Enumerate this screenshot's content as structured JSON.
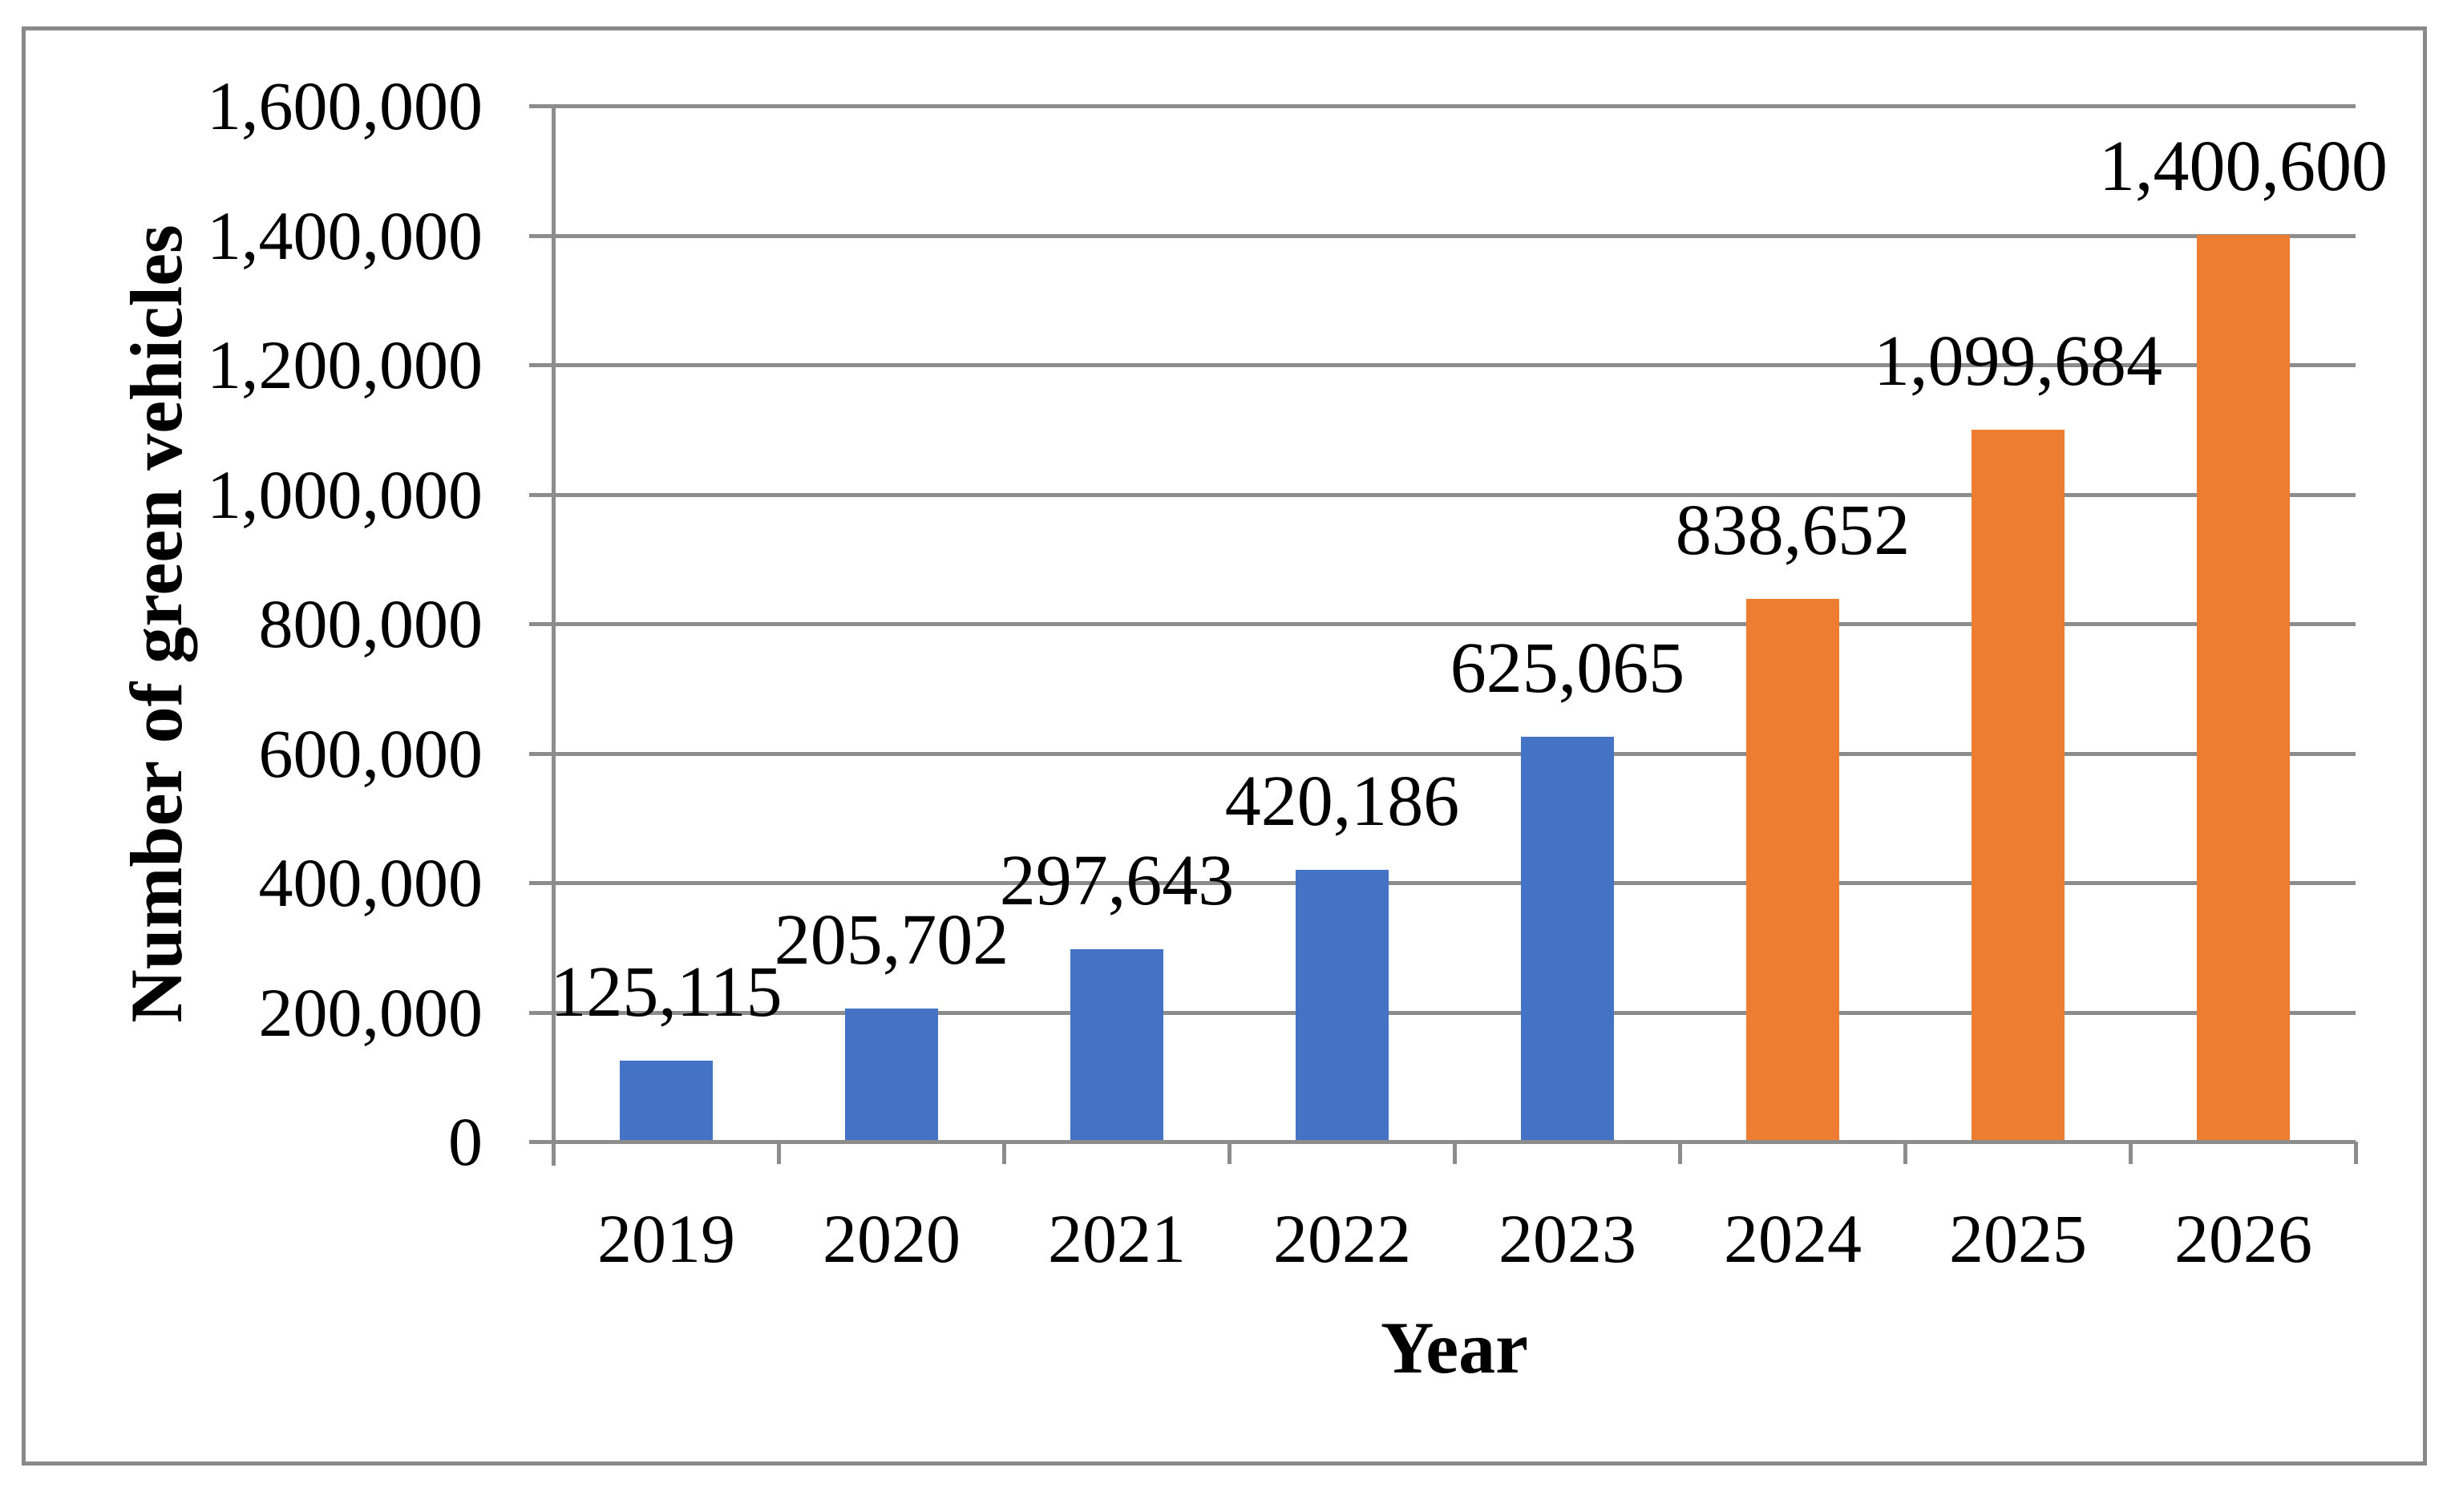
{
  "figure": {
    "background": "#FFFFFF",
    "border_color": "#898989"
  },
  "chart_data": {
    "type": "bar",
    "title": "",
    "xlabel": "Year",
    "ylabel": "Number of green vehicles",
    "categories": [
      "2019",
      "2020",
      "2021",
      "2022",
      "2023",
      "2024",
      "2025",
      "2026"
    ],
    "values": [
      125115,
      205702,
      297643,
      420186,
      625065,
      838652,
      1099684,
      1400600
    ],
    "data_labels": [
      "125,115",
      "205,702",
      "297,643",
      "420,186",
      "625,065",
      "838,652",
      "1,099,684",
      "1,400,600"
    ],
    "bar_colors": [
      "#4472C4",
      "#4472C4",
      "#4472C4",
      "#4472C4",
      "#4472C4",
      "#ED7D31",
      "#ED7D31",
      "#ED7D31"
    ],
    "colors": {
      "blue_bar": "#4472C4",
      "orange_bar": "#ED7D31",
      "grid": "#8C8C8C",
      "axis": "#8C8C8C",
      "text": "#000000"
    },
    "ylim": [
      0,
      1600000
    ],
    "ytick_step": 200000,
    "yticks": [
      {
        "value": 0,
        "label": "0"
      },
      {
        "value": 200000,
        "label": "200,000"
      },
      {
        "value": 400000,
        "label": "400,000"
      },
      {
        "value": 600000,
        "label": "600,000"
      },
      {
        "value": 800000,
        "label": "800,000"
      },
      {
        "value": 1000000,
        "label": "1,000,000"
      },
      {
        "value": 1200000,
        "label": "1,200,000"
      },
      {
        "value": 1400000,
        "label": "1,400,000"
      },
      {
        "value": 1600000,
        "label": "1,600,000"
      }
    ],
    "grid": true,
    "legend": "none"
  }
}
